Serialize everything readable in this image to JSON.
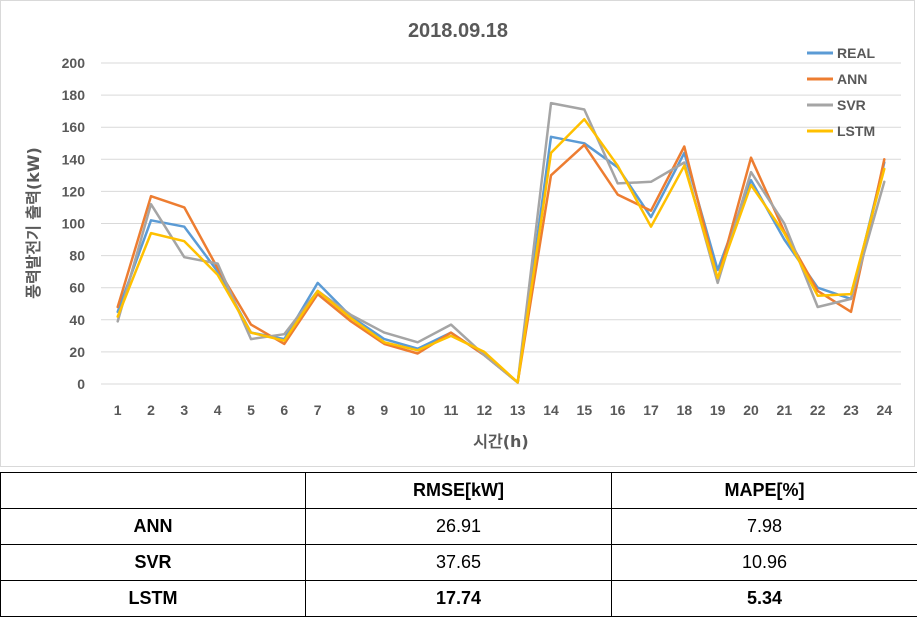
{
  "chart_data": {
    "type": "line",
    "title": "2018.09.18",
    "xlabel": "시간(h)",
    "ylabel": "풍력발전기 출력(kW)",
    "categories": [
      "1",
      "2",
      "3",
      "4",
      "5",
      "6",
      "7",
      "8",
      "9",
      "10",
      "11",
      "12",
      "13",
      "14",
      "15",
      "16",
      "17",
      "18",
      "19",
      "20",
      "21",
      "22",
      "23",
      "24"
    ],
    "ylim": [
      0,
      200
    ],
    "yticks": [
      0,
      20,
      40,
      60,
      80,
      100,
      120,
      140,
      160,
      180,
      200
    ],
    "grid": true,
    "legend_position": "top-right",
    "series": [
      {
        "name": "REAL",
        "color": "#5b9bd5",
        "values": [
          45,
          102,
          98,
          70,
          32,
          28,
          63,
          42,
          28,
          22,
          32,
          18,
          1,
          154,
          150,
          135,
          104,
          144,
          71,
          127,
          90,
          60,
          53,
          138
        ]
      },
      {
        "name": "ANN",
        "color": "#ed7d31",
        "values": [
          48,
          117,
          110,
          72,
          37,
          25,
          56,
          39,
          25,
          19,
          32,
          18,
          1,
          130,
          149,
          118,
          108,
          148,
          65,
          141,
          95,
          58,
          45,
          140
        ]
      },
      {
        "name": "SVR",
        "color": "#a5a5a5",
        "values": [
          39,
          112,
          79,
          75,
          28,
          31,
          58,
          43,
          32,
          26,
          37,
          18,
          1,
          175,
          171,
          125,
          126,
          138,
          63,
          132,
          100,
          48,
          53,
          126
        ]
      },
      {
        "name": "LSTM",
        "color": "#ffc000",
        "values": [
          42,
          94,
          89,
          68,
          32,
          27,
          58,
          41,
          26,
          21,
          30,
          20,
          1,
          144,
          165,
          136,
          98,
          136,
          66,
          124,
          94,
          55,
          56,
          134
        ]
      }
    ]
  },
  "table": {
    "headers": [
      "",
      "RMSE[kW]",
      "MAPE[%]"
    ],
    "rows": [
      {
        "label": "ANN",
        "rmse": "26.91",
        "mape": "7.98",
        "bold": false
      },
      {
        "label": "SVR",
        "rmse": "37.65",
        "mape": "10.96",
        "bold": false
      },
      {
        "label": "LSTM",
        "rmse": "17.74",
        "mape": "5.34",
        "bold": true
      }
    ]
  }
}
